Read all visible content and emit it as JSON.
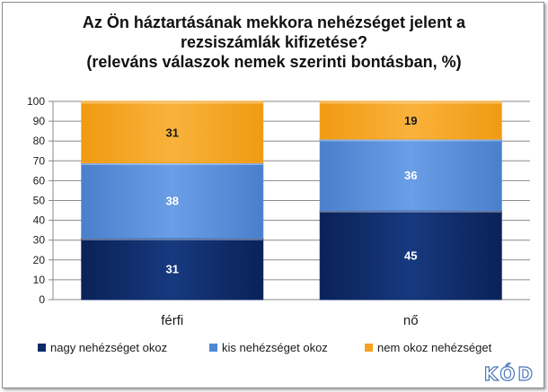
{
  "chart_data": {
    "type": "bar",
    "stacked": true,
    "title": [
      "Az Ön háztartásának mekkora nehézséget jelent a",
      "rezsiszámlák kifizetése?",
      "(releváns válaszok nemek szerinti bontásban, %)"
    ],
    "categories": [
      "férfi",
      "nő"
    ],
    "series": [
      {
        "name": "nagy nehézséget  okoz",
        "values": [
          31,
          45
        ],
        "color": "#0d2a6b"
      },
      {
        "name": "kis nehézséget  okoz",
        "values": [
          38,
          36
        ],
        "color": "#4f88d6"
      },
      {
        "name": "nem okoz nehézséget",
        "values": [
          31,
          19
        ],
        "color": "#f5a31f"
      }
    ],
    "ylim": [
      0,
      100
    ],
    "yticks": [
      0,
      10,
      20,
      30,
      40,
      50,
      60,
      70,
      80,
      90,
      100
    ],
    "grid": true,
    "legend": "bottom",
    "label_colors": [
      "#ffffff",
      "#ffffff",
      "#1a1a1a"
    ]
  },
  "logo": "KÓD"
}
